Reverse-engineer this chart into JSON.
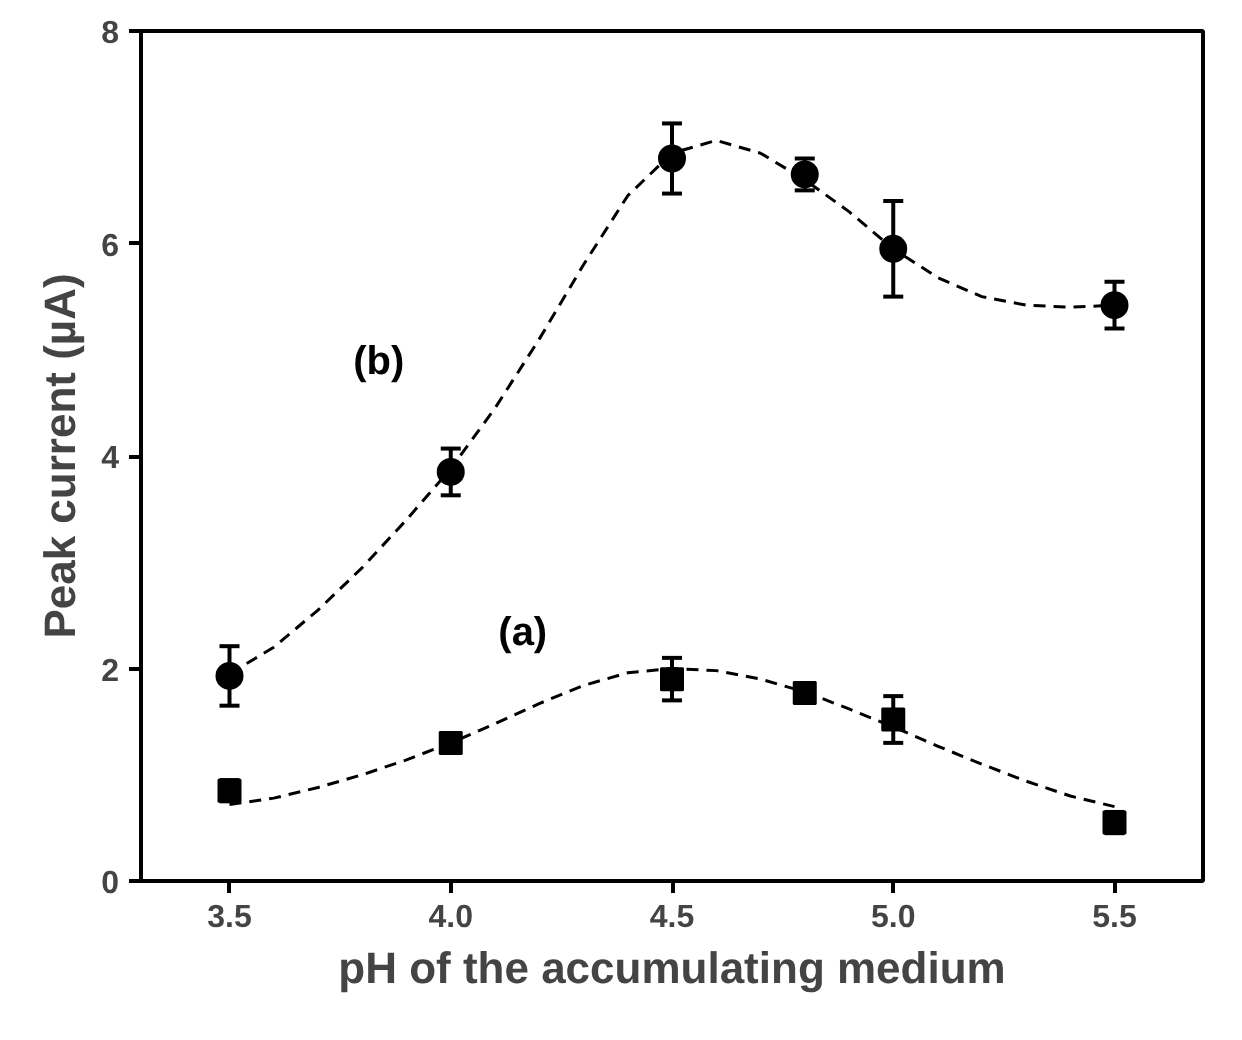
{
  "chart_data": {
    "type": "scatter",
    "xlabel": "pH of the accumulating medium",
    "ylabel": "Peak current (µA)",
    "xlim": [
      3.3,
      5.7
    ],
    "ylim": [
      0,
      8
    ],
    "xticks": [
      {
        "value": 3.5,
        "label": "3.5"
      },
      {
        "value": 4.0,
        "label": "4.0"
      },
      {
        "value": 4.5,
        "label": "4.5"
      },
      {
        "value": 5.0,
        "label": "5.0"
      },
      {
        "value": 5.5,
        "label": "5.5"
      }
    ],
    "yticks": [
      0,
      2,
      4,
      6,
      8
    ],
    "grid": false,
    "series": [
      {
        "name": "(a)",
        "marker": "square",
        "color": "#000000",
        "x": [
          3.5,
          4.0,
          4.5,
          4.8,
          5.0,
          5.5
        ],
        "values": [
          0.85,
          1.3,
          1.9,
          1.77,
          1.52,
          0.55
        ],
        "errors": [
          0.1,
          0.06,
          0.2,
          0.06,
          0.22,
          0.1
        ]
      },
      {
        "name": "(b)",
        "marker": "circle",
        "color": "#000000",
        "x": [
          3.5,
          4.0,
          4.5,
          4.8,
          5.0,
          5.5
        ],
        "values": [
          1.93,
          3.85,
          6.8,
          6.65,
          5.95,
          5.42
        ],
        "errors": [
          0.28,
          0.22,
          0.33,
          0.15,
          0.45,
          0.22
        ]
      },
      {
        "type": "line",
        "line_style": "dashed",
        "color": "#000000",
        "x": [
          3.5,
          3.6,
          3.7,
          3.8,
          3.9,
          4.0,
          4.1,
          4.2,
          4.3,
          4.4,
          4.5,
          4.6,
          4.7,
          4.8,
          4.9,
          5.0,
          5.1,
          5.2,
          5.3,
          5.4,
          5.5
        ],
        "values": [
          0.72,
          0.78,
          0.88,
          1.0,
          1.14,
          1.3,
          1.48,
          1.67,
          1.84,
          1.96,
          2.0,
          1.98,
          1.9,
          1.78,
          1.62,
          1.45,
          1.27,
          1.1,
          0.94,
          0.8,
          0.7
        ]
      },
      {
        "type": "line",
        "line_style": "dashed",
        "color": "#000000",
        "x": [
          3.5,
          3.6,
          3.7,
          3.8,
          3.9,
          4.0,
          4.1,
          4.2,
          4.3,
          4.4,
          4.5,
          4.6,
          4.7,
          4.8,
          4.9,
          5.0,
          5.1,
          5.2,
          5.3,
          5.4,
          5.5
        ],
        "values": [
          1.95,
          2.2,
          2.55,
          2.95,
          3.4,
          3.88,
          4.45,
          5.1,
          5.8,
          6.45,
          6.85,
          6.97,
          6.85,
          6.6,
          6.3,
          5.95,
          5.68,
          5.5,
          5.42,
          5.4,
          5.42
        ]
      }
    ]
  }
}
